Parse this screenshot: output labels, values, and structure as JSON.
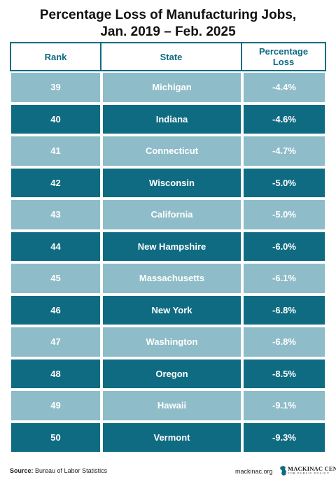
{
  "title": {
    "line1": "Percentage Loss of Manufacturing Jobs,",
    "line2": "Jan. 2019 – Feb. 2025"
  },
  "chart_data": {
    "type": "table",
    "columns": [
      "Rank",
      "State",
      "Percentage Loss"
    ],
    "rows": [
      {
        "rank": "39",
        "state": "Michigan",
        "loss": "-4.4%"
      },
      {
        "rank": "40",
        "state": "Indiana",
        "loss": "-4.6%"
      },
      {
        "rank": "41",
        "state": "Connecticut",
        "loss": "-4.7%"
      },
      {
        "rank": "42",
        "state": "Wisconsin",
        "loss": "-5.0%"
      },
      {
        "rank": "43",
        "state": "California",
        "loss": "-5.0%"
      },
      {
        "rank": "44",
        "state": "New Hampshire",
        "loss": "-6.0%"
      },
      {
        "rank": "45",
        "state": "Massachusetts",
        "loss": "-6.1%"
      },
      {
        "rank": "46",
        "state": "New York",
        "loss": "-6.8%"
      },
      {
        "rank": "47",
        "state": "Washington",
        "loss": "-6.8%"
      },
      {
        "rank": "48",
        "state": "Oregon",
        "loss": "-8.5%"
      },
      {
        "rank": "49",
        "state": "Hawaii",
        "loss": "-9.1%"
      },
      {
        "rank": "50",
        "state": "Vermont",
        "loss": "-9.3%"
      }
    ]
  },
  "headers": {
    "rank": "Rank",
    "state": "State",
    "loss_line1": "Percentage",
    "loss_line2": "Loss"
  },
  "footer": {
    "source_label": "Source:",
    "source_text": "Bureau of Labor Statistics",
    "site": "mackinac.org",
    "logo_main": "MACKINAC CENTER",
    "logo_sub": "FOR PUBLIC POLICY"
  },
  "colors": {
    "light_row": "#8ebcc8",
    "dark_row": "#0f6b82",
    "header_text": "#0f6b82"
  }
}
